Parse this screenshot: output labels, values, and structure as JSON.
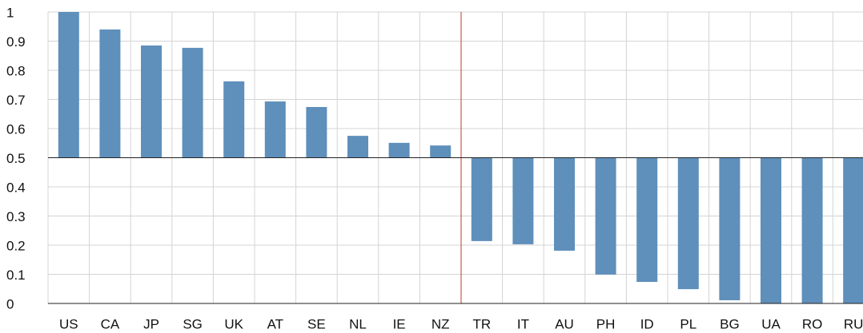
{
  "chart_data": {
    "type": "bar",
    "categories": [
      "US",
      "CA",
      "JP",
      "SG",
      "UK",
      "AT",
      "SE",
      "NL",
      "IE",
      "NZ",
      "TR",
      "IT",
      "AU",
      "PH",
      "ID",
      "PL",
      "BG",
      "UA",
      "RO",
      "RU"
    ],
    "values": [
      1.0,
      0.94,
      0.885,
      0.877,
      0.762,
      0.693,
      0.674,
      0.575,
      0.551,
      0.542,
      0.214,
      0.203,
      0.181,
      0.099,
      0.074,
      0.049,
      0.011,
      0,
      0,
      0
    ],
    "color": "#5f8fbb",
    "baseline": 0.5,
    "ylim": [
      0,
      1
    ],
    "yticks": [
      0,
      0.1,
      0.2,
      0.3,
      0.4,
      0.5,
      0.6,
      0.7,
      0.8,
      0.9,
      1
    ],
    "grid": true
  }
}
